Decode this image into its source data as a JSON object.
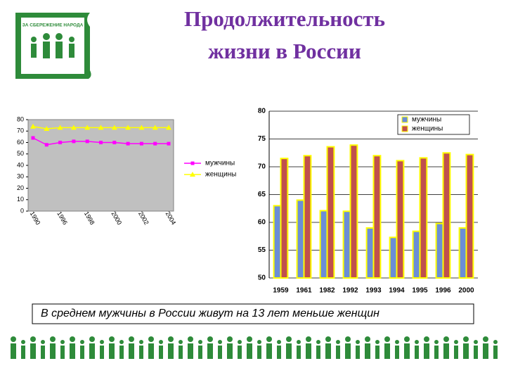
{
  "slide": {
    "title_lines": [
      "Продолжительность",
      "жизни в России"
    ],
    "caption": "В среднем мужчины в России живут на 13 лет меньше женщин",
    "logo_text": "ЗА СБЕРЕЖЕНИЕ НАРОДА"
  },
  "chart_data": [
    {
      "type": "line",
      "categories": [
        "1990",
        null,
        "1996",
        null,
        "1998",
        null,
        "2000",
        null,
        "2002",
        null,
        "2004"
      ],
      "series": [
        {
          "name": "мужчины",
          "color": "#ff00ff",
          "marker": "square",
          "values": [
            64,
            58,
            60,
            61,
            61,
            60,
            60,
            59,
            59,
            59,
            59
          ]
        },
        {
          "name": "женщины",
          "color": "#ffff00",
          "marker": "triangle",
          "values": [
            74,
            72,
            73,
            73,
            73,
            73,
            73,
            73,
            73,
            73,
            73
          ]
        }
      ],
      "ylim": [
        0,
        80
      ],
      "yticks": [
        0,
        10,
        20,
        30,
        40,
        50,
        60,
        70,
        80
      ],
      "legend": "right"
    },
    {
      "type": "bar",
      "categories": [
        "1959",
        "1961",
        "1982",
        "1992",
        "1993",
        "1994",
        "1995",
        "1996",
        "2000"
      ],
      "series": [
        {
          "name": "мужчины",
          "color": "#6b8ed6",
          "values": [
            63.0,
            64.0,
            62.1,
            62.0,
            59.0,
            57.3,
            58.4,
            59.8,
            59.0
          ]
        },
        {
          "name": "женщины",
          "color": "#c0504d",
          "values": [
            71.5,
            72.0,
            73.6,
            73.9,
            72.0,
            71.1,
            71.6,
            72.5,
            72.2
          ]
        }
      ],
      "ylim": [
        50,
        80
      ],
      "yticks": [
        50,
        55,
        60,
        65,
        70,
        75,
        80
      ],
      "grid": true,
      "legend": "upper right"
    }
  ]
}
